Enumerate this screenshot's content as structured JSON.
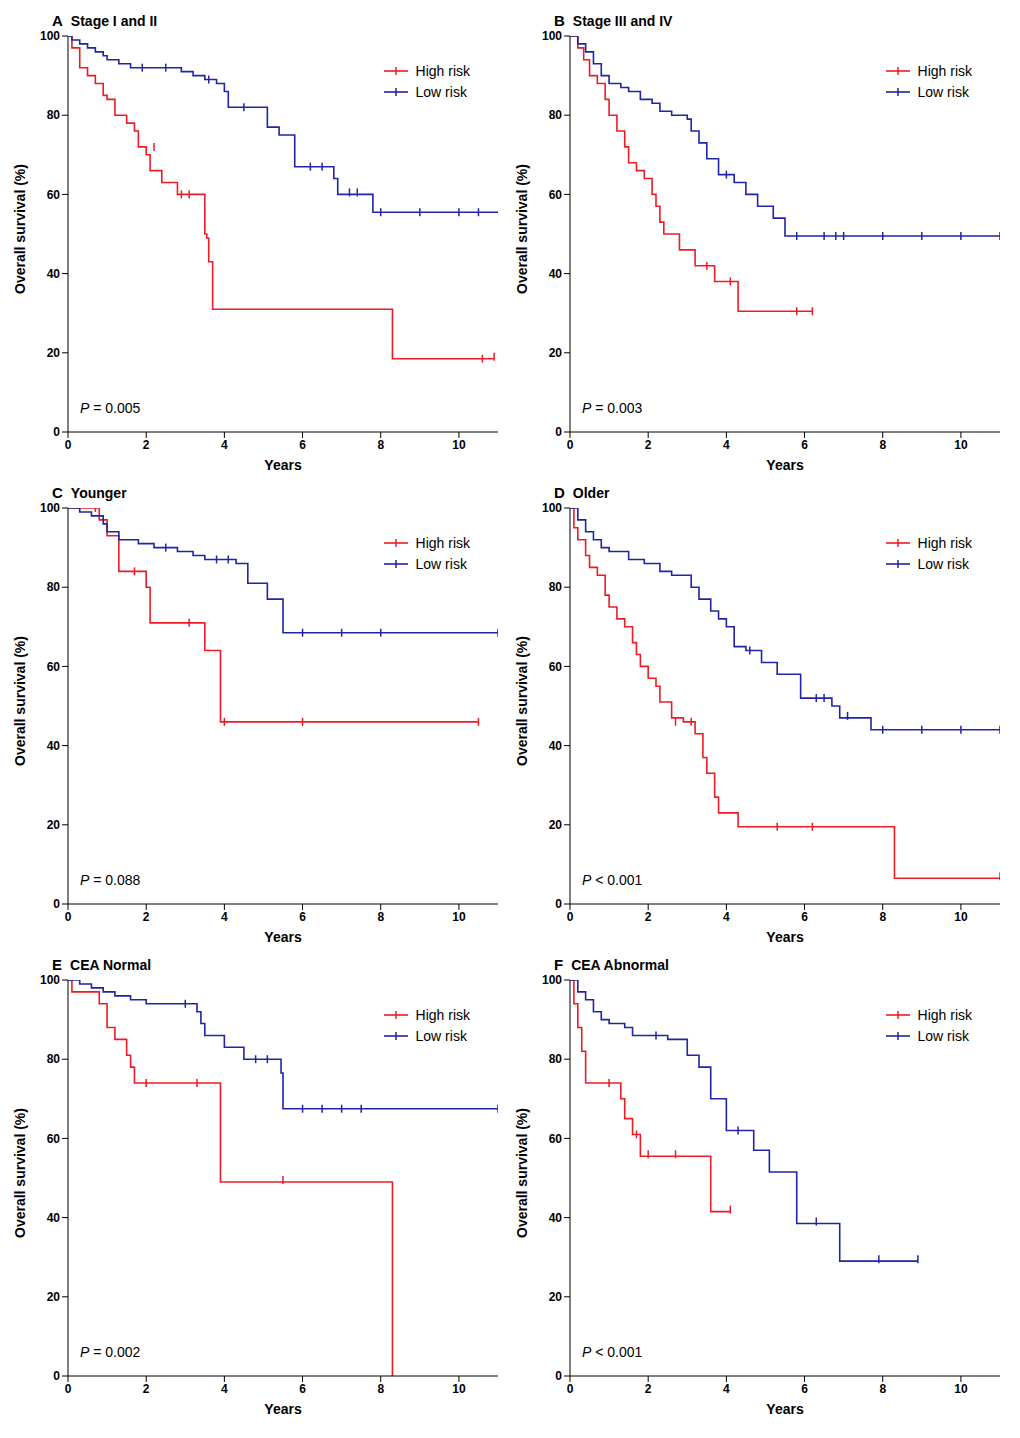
{
  "chart_data": [
    {
      "type": "line",
      "panel": "A",
      "title": "Stage I and II",
      "x_label": "Years",
      "y_label": "Overall survival (%)",
      "annotation": "P = 0.005",
      "xlim": [
        0,
        11
      ],
      "xticks": [
        0,
        2,
        4,
        6,
        8,
        10
      ],
      "ylim": [
        0,
        100
      ],
      "yticks": [
        0,
        20,
        40,
        60,
        80,
        100
      ],
      "legend": "upper right",
      "line_style": "step",
      "series": [
        {
          "name": "High risk",
          "color": "#ed1c24",
          "marker": "tick",
          "x": [
            0,
            0.1,
            0.3,
            0.5,
            0.7,
            0.9,
            1.0,
            1.2,
            1.5,
            1.7,
            1.8,
            2.0,
            2.1,
            2.4,
            2.8,
            3.5,
            3.55,
            3.6,
            3.7,
            8.3,
            10.9
          ],
          "values": [
            100,
            97,
            92,
            90,
            88,
            85,
            84,
            80,
            78,
            76,
            72,
            70,
            66,
            63,
            60,
            50,
            49,
            43,
            31,
            18.5,
            18.5
          ],
          "censored": {
            "x": [
              2.2,
              2.9,
              3.1,
              10.6,
              10.9
            ],
            "y": [
              72,
              60,
              60,
              18.5,
              19
            ]
          }
        },
        {
          "name": "Low risk",
          "color": "#1f24a8",
          "marker": "tick",
          "x": [
            0,
            0.1,
            0.3,
            0.5,
            0.7,
            0.9,
            1.0,
            1.3,
            1.6,
            2.9,
            3.2,
            3.5,
            3.8,
            4.0,
            4.1,
            5.1,
            5.4,
            5.8,
            6.8,
            6.9,
            7.8,
            11
          ],
          "values": [
            100,
            99,
            98,
            97,
            96,
            95,
            94,
            93,
            92,
            91,
            90,
            89,
            88,
            86,
            82,
            77,
            75,
            67,
            64,
            60,
            55.5,
            55.5
          ],
          "censored": {
            "x": [
              1.9,
              2.5,
              3.6,
              4.5,
              6.2,
              6.5,
              7.2,
              7.4,
              8,
              9,
              10,
              10.5
            ],
            "y": [
              92,
              92,
              89,
              82,
              67,
              67,
              60.5,
              60.5,
              55.5,
              55.5,
              55.5,
              55.5
            ]
          }
        }
      ]
    },
    {
      "type": "line",
      "panel": "B",
      "title": "Stage III and IV",
      "x_label": "Years",
      "y_label": "Overall survival (%)",
      "annotation": "P = 0.003",
      "xlim": [
        0,
        11
      ],
      "xticks": [
        0,
        2,
        4,
        6,
        8,
        10
      ],
      "ylim": [
        0,
        100
      ],
      "yticks": [
        0,
        20,
        40,
        60,
        80,
        100
      ],
      "legend": "upper right",
      "line_style": "step",
      "series": [
        {
          "name": "High risk",
          "color": "#ed1c24",
          "marker": "tick",
          "x": [
            0,
            0.2,
            0.35,
            0.5,
            0.7,
            0.9,
            1.0,
            1.2,
            1.4,
            1.5,
            1.7,
            1.9,
            2.1,
            2.2,
            2.3,
            2.4,
            2.8,
            3.2,
            3.7,
            4.3,
            6.2
          ],
          "values": [
            100,
            97,
            94,
            90,
            88,
            84,
            80,
            76,
            72,
            68,
            66,
            64,
            60,
            57,
            53,
            50,
            46,
            42,
            38,
            30.5,
            30.5
          ],
          "censored": {
            "x": [
              3.5,
              4.1,
              5.8,
              6.2
            ],
            "y": [
              42,
              38,
              30.5,
              30.5
            ]
          }
        },
        {
          "name": "Low risk",
          "color": "#1f24a8",
          "marker": "tick",
          "x": [
            0,
            0.2,
            0.4,
            0.6,
            0.8,
            1.0,
            1.3,
            1.5,
            1.8,
            2.1,
            2.3,
            2.6,
            3.0,
            3.1,
            3.3,
            3.5,
            3.8,
            4.2,
            4.5,
            4.8,
            5.2,
            5.5,
            11
          ],
          "values": [
            100,
            98,
            96,
            93,
            90,
            88,
            87,
            86,
            84,
            83,
            81,
            80,
            79,
            76,
            73,
            69,
            65,
            63,
            60,
            57,
            54,
            49.5,
            49.5
          ],
          "censored": {
            "x": [
              4.0,
              5.8,
              6.5,
              6.8,
              7,
              8,
              9,
              10,
              11
            ],
            "y": [
              65,
              49.5,
              49.5,
              49.5,
              49.5,
              49.5,
              49.5,
              49.5,
              49.5
            ]
          }
        }
      ]
    },
    {
      "type": "line",
      "panel": "C",
      "title": "Younger",
      "x_label": "Years",
      "y_label": "Overall survival (%)",
      "annotation": "P = 0.088",
      "xlim": [
        0,
        11
      ],
      "xticks": [
        0,
        2,
        4,
        6,
        8,
        10
      ],
      "ylim": [
        0,
        100
      ],
      "yticks": [
        0,
        20,
        40,
        60,
        80,
        100
      ],
      "legend": "upper right",
      "line_style": "step",
      "series": [
        {
          "name": "High risk",
          "color": "#ed1c24",
          "marker": "tick",
          "x": [
            0,
            0.7,
            0.8,
            1.0,
            1.3,
            2.0,
            2.1,
            3.5,
            3.9,
            10.5
          ],
          "values": [
            100,
            100,
            97,
            93,
            84,
            80,
            71,
            64,
            46,
            46
          ],
          "censored": {
            "x": [
              0.7,
              1.7,
              3.1,
              4.0,
              6,
              10.5
            ],
            "y": [
              100,
              84,
              71,
              46,
              46,
              46
            ]
          }
        },
        {
          "name": "Low risk",
          "color": "#1f24a8",
          "marker": "tick",
          "x": [
            0,
            0.3,
            0.6,
            0.9,
            1.0,
            1.3,
            1.8,
            2.2,
            2.8,
            3.2,
            3.5,
            4.3,
            4.6,
            5.1,
            5.5,
            11
          ],
          "values": [
            100,
            99,
            98,
            96,
            94,
            92,
            91,
            90,
            89,
            88,
            87,
            86,
            81,
            77,
            68.5,
            68.5
          ],
          "censored": {
            "x": [
              2.5,
              3.8,
              4.1,
              6,
              7,
              8,
              11
            ],
            "y": [
              90,
              87,
              87,
              68.5,
              68.5,
              68.5,
              68.5
            ]
          }
        }
      ]
    },
    {
      "type": "line",
      "panel": "D",
      "title": "Older",
      "x_label": "Years",
      "y_label": "Overall survival (%)",
      "annotation": "P < 0.001",
      "xlim": [
        0,
        11
      ],
      "xticks": [
        0,
        2,
        4,
        6,
        8,
        10
      ],
      "ylim": [
        0,
        100
      ],
      "yticks": [
        0,
        20,
        40,
        60,
        80,
        100
      ],
      "legend": "upper right",
      "line_style": "step",
      "series": [
        {
          "name": "High risk",
          "color": "#ed1c24",
          "marker": "tick",
          "x": [
            0,
            0.1,
            0.2,
            0.4,
            0.5,
            0.7,
            0.9,
            1.0,
            1.2,
            1.4,
            1.6,
            1.7,
            1.8,
            2.0,
            2.2,
            2.3,
            2.6,
            2.9,
            3.2,
            3.4,
            3.5,
            3.7,
            3.8,
            4.3,
            8.3,
            11
          ],
          "values": [
            100,
            95,
            92,
            88,
            85,
            83,
            78,
            75,
            72,
            70,
            66,
            63,
            60,
            57,
            55,
            51,
            47,
            46,
            43,
            37,
            33,
            27,
            23,
            19.5,
            6.5,
            6.5
          ],
          "censored": {
            "x": [
              2.7,
              3.1,
              5.3,
              6.2,
              11
            ],
            "y": [
              46,
              46,
              19.5,
              19.5,
              7
            ]
          }
        },
        {
          "name": "Low risk",
          "color": "#1f24a8",
          "marker": "tick",
          "x": [
            0,
            0.2,
            0.4,
            0.6,
            0.8,
            1.0,
            1.5,
            1.9,
            2.3,
            2.6,
            3.1,
            3.3,
            3.6,
            3.8,
            4.0,
            4.2,
            4.5,
            4.9,
            5.3,
            5.9,
            6.7,
            6.9,
            7.7,
            11
          ],
          "values": [
            100,
            97,
            94,
            92,
            90,
            89,
            87,
            86,
            84,
            83,
            80,
            77,
            74,
            72,
            70,
            65,
            64,
            61,
            58,
            52,
            50,
            47,
            44,
            44
          ],
          "censored": {
            "x": [
              4.6,
              6.3,
              6.5,
              7.1,
              8,
              9,
              10,
              11
            ],
            "y": [
              64,
              52,
              52,
              47.5,
              44,
              44,
              44,
              44
            ]
          }
        }
      ]
    },
    {
      "type": "line",
      "panel": "E",
      "title": "CEA Normal",
      "x_label": "Years",
      "y_label": "Overall survival (%)",
      "annotation": "P = 0.002",
      "xlim": [
        0,
        11
      ],
      "xticks": [
        0,
        2,
        4,
        6,
        8,
        10
      ],
      "ylim": [
        0,
        100
      ],
      "yticks": [
        0,
        20,
        40,
        60,
        80,
        100
      ],
      "legend": "upper right",
      "line_style": "step",
      "series": [
        {
          "name": "High risk",
          "color": "#ed1c24",
          "marker": "tick",
          "x": [
            0,
            0.1,
            0.8,
            1.0,
            1.2,
            1.5,
            1.6,
            1.7,
            3.9,
            8.3
          ],
          "values": [
            100,
            97,
            94,
            88,
            85,
            81,
            78,
            74,
            49,
            0
          ],
          "censored": {
            "x": [
              2.0,
              3.3,
              5.5
            ],
            "y": [
              74,
              74,
              49.5
            ]
          }
        },
        {
          "name": "Low risk",
          "color": "#1f24a8",
          "marker": "tick",
          "x": [
            0,
            0.3,
            0.6,
            0.9,
            1.2,
            1.6,
            2.0,
            3.3,
            3.4,
            3.5,
            4.0,
            4.5,
            5.45,
            5.5,
            11
          ],
          "values": [
            100,
            99,
            98,
            97,
            96,
            95,
            94,
            92,
            89,
            86,
            83,
            80,
            76.5,
            67.5,
            67.5
          ],
          "censored": {
            "x": [
              3.0,
              4.8,
              5.1,
              6,
              6.5,
              7,
              7.5,
              11
            ],
            "y": [
              94,
              80,
              80,
              67.5,
              67.5,
              67.5,
              67.5,
              67.5
            ]
          }
        }
      ]
    },
    {
      "type": "line",
      "panel": "F",
      "title": "CEA Abnormal",
      "x_label": "Years",
      "y_label": "Overall survival (%)",
      "annotation": "P < 0.001",
      "xlim": [
        0,
        11
      ],
      "xticks": [
        0,
        2,
        4,
        6,
        8,
        10
      ],
      "ylim": [
        0,
        100
      ],
      "yticks": [
        0,
        20,
        40,
        60,
        80,
        100
      ],
      "legend": "upper right",
      "line_style": "step",
      "series": [
        {
          "name": "High risk",
          "color": "#ed1c24",
          "marker": "tick",
          "x": [
            0,
            0.1,
            0.2,
            0.3,
            0.4,
            1.3,
            1.4,
            1.6,
            1.8,
            3.6,
            4.1
          ],
          "values": [
            100,
            94,
            88,
            82,
            74,
            70,
            65,
            61,
            55.5,
            41.5,
            41.5
          ],
          "censored": {
            "x": [
              1.0,
              1.7,
              2.0,
              2.7,
              4.1
            ],
            "y": [
              74,
              61,
              56,
              56,
              42
            ]
          }
        },
        {
          "name": "Low risk",
          "color": "#1f24a8",
          "marker": "tick",
          "x": [
            0,
            0.2,
            0.4,
            0.6,
            0.8,
            1.0,
            1.4,
            1.6,
            2.5,
            3.0,
            3.3,
            3.6,
            4.0,
            4.7,
            5.1,
            5.8,
            6.9,
            8.9
          ],
          "values": [
            100,
            97,
            95,
            92,
            90,
            89,
            88,
            86,
            85,
            81,
            78,
            70,
            62,
            57,
            51.5,
            38.5,
            29,
            29
          ],
          "censored": {
            "x": [
              2.2,
              4.3,
              6.3,
              7.9,
              8.9
            ],
            "y": [
              86,
              62,
              39,
              29.5,
              29.5
            ]
          }
        }
      ]
    }
  ]
}
